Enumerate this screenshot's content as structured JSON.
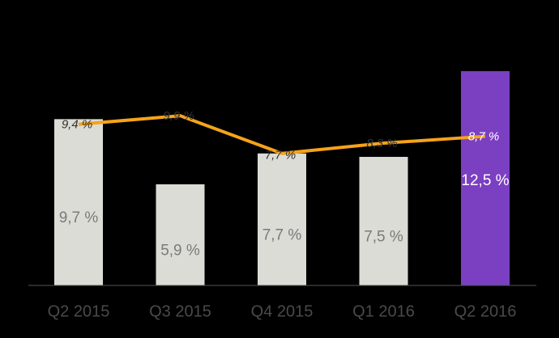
{
  "chart_data": {
    "type": "bar",
    "categories": [
      "Q2 2015",
      "Q3 2015",
      "Q4 2015",
      "Q1 2016",
      "Q2 2016"
    ],
    "series": [
      {
        "type": "bar",
        "values": [
          9.7,
          5.9,
          7.7,
          7.5,
          12.5
        ],
        "value_labels": [
          "9,7 %",
          "5,9 %",
          "7,7 %",
          "7,5 %",
          "12,5 %"
        ],
        "colors": [
          "#dcdcd6",
          "#dcdcd6",
          "#dcdcd6",
          "#dcdcd6",
          "#7b3fc2"
        ]
      },
      {
        "type": "line",
        "color": "#f5a31a",
        "values": [
          9.4,
          9.9,
          7.7,
          8.3,
          8.7
        ],
        "value_labels": [
          "9,4 %",
          "9,9 %",
          "7,7 %",
          "8,3 %",
          "8,7 %"
        ]
      }
    ]
  }
}
